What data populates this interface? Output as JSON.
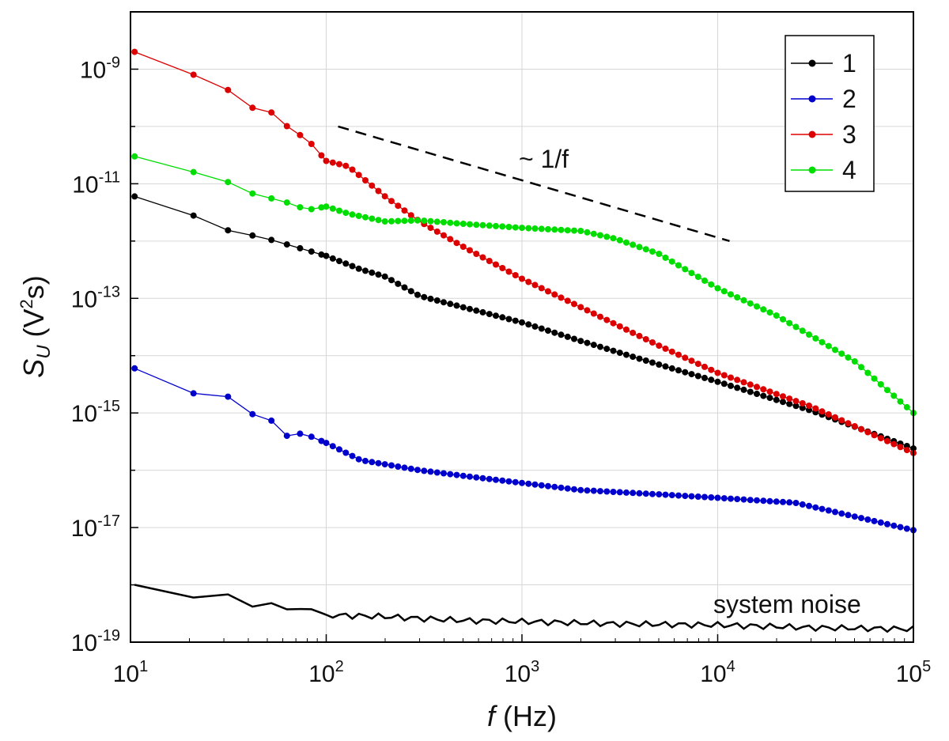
{
  "chart_data": {
    "type": "line",
    "xscale": "log",
    "yscale": "log",
    "xlim": [
      10,
      100000
    ],
    "ylim": [
      1e-19,
      1e-08
    ],
    "grid": true,
    "legend_position": "top-right",
    "xlabel": {
      "italic": "f",
      "text": " (Hz)"
    },
    "ylabel": {
      "main": "S",
      "sub": "U",
      "open": " (V",
      "sup": "2",
      "close": "s)"
    },
    "x_ticks": [
      {
        "value": 10,
        "base": "10",
        "exp": "1"
      },
      {
        "value": 100,
        "base": "10",
        "exp": "2"
      },
      {
        "value": 1000,
        "base": "10",
        "exp": "3"
      },
      {
        "value": 10000,
        "base": "10",
        "exp": "4"
      },
      {
        "value": 100000,
        "base": "10",
        "exp": "5"
      }
    ],
    "y_ticks": [
      {
        "value": 1e-09,
        "base": "10",
        "exp": "-9"
      },
      {
        "value": 1e-11,
        "base": "10",
        "exp": "-11"
      },
      {
        "value": 1e-13,
        "base": "10",
        "exp": "-13"
      },
      {
        "value": 1e-15,
        "base": "10",
        "exp": "-15"
      },
      {
        "value": 1e-17,
        "base": "10",
        "exp": "-17"
      },
      {
        "value": 1e-19,
        "base": "10",
        "exp": "-19"
      }
    ],
    "series": [
      {
        "name": "1",
        "color": "#000000",
        "anchors": [
          [
            10.5,
            6e-12
          ],
          [
            20,
            3e-12
          ],
          [
            30,
            1.6e-12
          ],
          [
            50,
            1.1e-12
          ],
          [
            100,
            5.5e-13
          ],
          [
            150,
            3.2e-13
          ],
          [
            200,
            2.4e-13
          ],
          [
            300,
            1.1e-13
          ],
          [
            500,
            7e-14
          ],
          [
            1000,
            3.8e-14
          ],
          [
            2000,
            1.8e-14
          ],
          [
            5000,
            7e-15
          ],
          [
            10000,
            3.5e-15
          ],
          [
            30000,
            1.1e-15
          ],
          [
            100000,
            2.4e-16
          ]
        ]
      },
      {
        "name": "2",
        "color": "#0000cc",
        "anchors": [
          [
            10.5,
            6e-15
          ],
          [
            21,
            2.2e-15
          ],
          [
            31,
            2e-15
          ],
          [
            43,
            9e-16
          ],
          [
            55,
            7e-16
          ],
          [
            65,
            3.5e-16
          ],
          [
            75,
            4.5e-16
          ],
          [
            100,
            3e-16
          ],
          [
            150,
            1.5e-16
          ],
          [
            300,
            1e-16
          ],
          [
            500,
            8e-17
          ],
          [
            1000,
            6e-17
          ],
          [
            2000,
            4.5e-17
          ],
          [
            5000,
            3.8e-17
          ],
          [
            10000,
            3.3e-17
          ],
          [
            25000,
            2.7e-17
          ],
          [
            100000,
            9e-18
          ]
        ]
      },
      {
        "name": "3",
        "color": "#dd0000",
        "anchors": [
          [
            10.5,
            2e-09
          ],
          [
            21,
            8e-10
          ],
          [
            31,
            4.5e-10
          ],
          [
            43,
            2e-10
          ],
          [
            55,
            1.7e-10
          ],
          [
            65,
            9e-11
          ],
          [
            80,
            6e-11
          ],
          [
            100,
            2.5e-11
          ],
          [
            130,
            2e-11
          ],
          [
            200,
            6e-12
          ],
          [
            300,
            2.2e-12
          ],
          [
            500,
            8e-13
          ],
          [
            1000,
            2.2e-13
          ],
          [
            2000,
            7e-14
          ],
          [
            5000,
            1.5e-14
          ],
          [
            10000,
            5e-15
          ],
          [
            30000,
            1.3e-15
          ],
          [
            100000,
            2e-16
          ]
        ]
      },
      {
        "name": "4",
        "color": "#00dd00",
        "anchors": [
          [
            10.5,
            3e-11
          ],
          [
            21,
            1.6e-11
          ],
          [
            31,
            1.1e-11
          ],
          [
            43,
            6.5e-12
          ],
          [
            60,
            5e-12
          ],
          [
            80,
            3.5e-12
          ],
          [
            100,
            4e-12
          ],
          [
            130,
            3e-12
          ],
          [
            200,
            2.2e-12
          ],
          [
            300,
            2.3e-12
          ],
          [
            500,
            2e-12
          ],
          [
            1000,
            1.7e-12
          ],
          [
            2000,
            1.5e-12
          ],
          [
            3000,
            1.1e-12
          ],
          [
            5000,
            6e-13
          ],
          [
            10000,
            1.5e-13
          ],
          [
            20000,
            5e-14
          ],
          [
            50000,
            8e-15
          ],
          [
            100000,
            1e-15
          ]
        ]
      }
    ],
    "system_noise": {
      "label": "system noise",
      "anchors": [
        [
          10.5,
          1e-18
        ],
        [
          21,
          6e-19
        ],
        [
          31,
          7e-19
        ],
        [
          43,
          4e-19
        ],
        [
          55,
          5e-19
        ],
        [
          65,
          3.5e-19
        ],
        [
          80,
          4e-19
        ],
        [
          100,
          3e-19
        ],
        [
          200,
          2.8e-19
        ],
        [
          300,
          2.6e-19
        ],
        [
          500,
          2.4e-19
        ],
        [
          1000,
          2.3e-19
        ],
        [
          3000,
          2.1e-19
        ],
        [
          10000,
          2e-19
        ],
        [
          30000,
          1.8e-19
        ],
        [
          100000,
          1.7e-19
        ]
      ]
    },
    "slope_guide": {
      "label": "~ 1/f",
      "from": [
        115,
        1e-10
      ],
      "to": [
        11500,
        1e-12
      ]
    }
  }
}
